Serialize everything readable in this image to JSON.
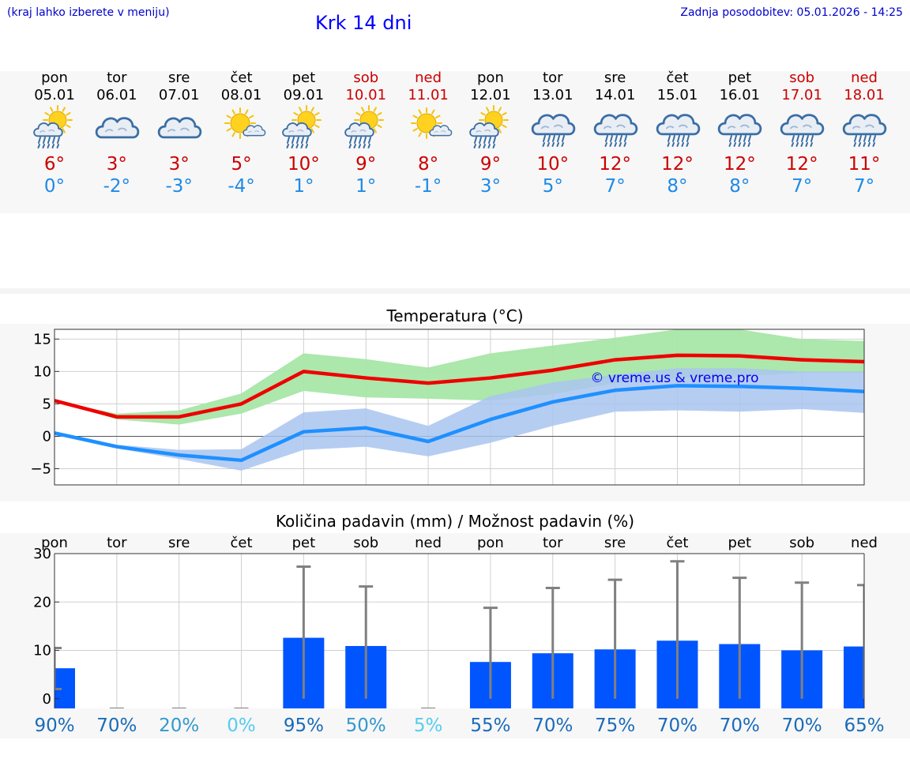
{
  "header": {
    "hint": "(kraj lahko izberete v meniju)",
    "title": "Krk 14 dni",
    "updated": "Zadnja posodobitev: 05.01.2026 - 14:25"
  },
  "days": [
    {
      "day": "pon",
      "date": "05.01",
      "weekend": false,
      "icon": "sun-cloud-rain-icon",
      "high": "6°",
      "low": "0°"
    },
    {
      "day": "tor",
      "date": "06.01",
      "weekend": false,
      "icon": "cloud-icon",
      "high": "3°",
      "low": "-2°"
    },
    {
      "day": "sre",
      "date": "07.01",
      "weekend": false,
      "icon": "cloud-icon",
      "high": "3°",
      "low": "-3°"
    },
    {
      "day": "čet",
      "date": "08.01",
      "weekend": false,
      "icon": "sun-small-cloud-icon",
      "high": "5°",
      "low": "-4°"
    },
    {
      "day": "pet",
      "date": "09.01",
      "weekend": false,
      "icon": "sun-cloud-rain-icon",
      "high": "10°",
      "low": "1°"
    },
    {
      "day": "sob",
      "date": "10.01",
      "weekend": true,
      "icon": "sun-cloud-rain-icon",
      "high": "9°",
      "low": "1°"
    },
    {
      "day": "ned",
      "date": "11.01",
      "weekend": true,
      "icon": "sun-small-cloud-icon",
      "high": "8°",
      "low": "-1°"
    },
    {
      "day": "pon",
      "date": "12.01",
      "weekend": false,
      "icon": "sun-cloud-rain-icon",
      "high": "9°",
      "low": "3°"
    },
    {
      "day": "tor",
      "date": "13.01",
      "weekend": false,
      "icon": "cloud-rain-icon",
      "high": "10°",
      "low": "5°"
    },
    {
      "day": "sre",
      "date": "14.01",
      "weekend": false,
      "icon": "cloud-rain-icon",
      "high": "12°",
      "low": "7°"
    },
    {
      "day": "čet",
      "date": "15.01",
      "weekend": false,
      "icon": "cloud-rain-icon",
      "high": "12°",
      "low": "8°"
    },
    {
      "day": "pet",
      "date": "16.01",
      "weekend": false,
      "icon": "cloud-rain-icon",
      "high": "12°",
      "low": "8°"
    },
    {
      "day": "sob",
      "date": "17.01",
      "weekend": true,
      "icon": "cloud-rain-icon",
      "high": "12°",
      "low": "7°"
    },
    {
      "day": "ned",
      "date": "18.01",
      "weekend": true,
      "icon": "cloud-rain-icon",
      "high": "11°",
      "low": "7°"
    }
  ],
  "colors": {
    "high": "#cc0000",
    "low": "#1e8ae6",
    "max_line": "#ee0000",
    "min_line": "#1e90ff",
    "max_band": "#a8e6a8",
    "min_band": "#a9c4f0",
    "bar": "#0055ff",
    "whisker": "#808080"
  },
  "chart_data": [
    {
      "type": "line",
      "title": "Temperatura (°C)",
      "ylim": [
        -7.5,
        16.5
      ],
      "yticks": [
        -5,
        0,
        5,
        10,
        15
      ],
      "ytick_labels": [
        "−5",
        "0",
        "5",
        "10",
        "15"
      ],
      "watermark": "© vreme.us & vreme.pro",
      "series": [
        {
          "name": "max",
          "values": [
            5.5,
            3,
            3,
            5,
            10,
            9,
            8.2,
            9,
            10.2,
            11.8,
            12.5,
            12.4,
            11.8,
            11.5
          ]
        },
        {
          "name": "min",
          "values": [
            0.5,
            -1.6,
            -2.9,
            -3.7,
            0.7,
            1.3,
            -0.8,
            2.6,
            5.3,
            7.1,
            7.8,
            7.7,
            7.4,
            6.9
          ]
        }
      ],
      "bands": [
        {
          "name": "max_range",
          "upper": [
            5.5,
            3.5,
            4,
            6.6,
            12.8,
            11.9,
            10.6,
            12.8,
            14,
            15.2,
            16.5,
            16.5,
            15,
            14.7
          ],
          "lower": [
            5.5,
            2.6,
            1.8,
            3.5,
            7,
            6,
            5.8,
            5.5,
            6.5,
            8.2,
            9,
            9.2,
            9.8,
            9.8
          ]
        },
        {
          "name": "min_range",
          "upper": [
            0.7,
            -1.3,
            -2.1,
            -2,
            3.7,
            4.3,
            1.6,
            6.2,
            8.3,
            9.5,
            10.5,
            10.5,
            10,
            10
          ],
          "lower": [
            0.2,
            -1.9,
            -3.5,
            -5.3,
            -2.1,
            -1.6,
            -3.1,
            -1,
            1.6,
            3.8,
            4,
            3.8,
            4.2,
            3.6
          ]
        }
      ]
    },
    {
      "type": "bar",
      "title": "Količina padavin (mm) / Možnost padavin (%)",
      "categories": [
        "pon",
        "tor",
        "sre",
        "čet",
        "pet",
        "sob",
        "ned",
        "pon",
        "tor",
        "sre",
        "čet",
        "pet",
        "sob",
        "ned"
      ],
      "ylim": [
        -2,
        30
      ],
      "yticks": [
        0,
        10,
        20,
        30
      ],
      "values": [
        6.3,
        0,
        0,
        0,
        12.6,
        10.9,
        0,
        7.6,
        9.4,
        10.2,
        12,
        11.3,
        10,
        10.8
      ],
      "error_low": [
        2,
        0,
        0,
        0,
        0,
        0,
        0,
        0,
        0,
        0,
        0,
        0,
        0,
        0
      ],
      "error_high": [
        10.5,
        0,
        0,
        0,
        27.3,
        23.2,
        0,
        18.8,
        22.9,
        24.6,
        28.4,
        25,
        24,
        23.5
      ],
      "chance": [
        "90%",
        "70%",
        "20%",
        "0%",
        "95%",
        "50%",
        "5%",
        "55%",
        "70%",
        "75%",
        "70%",
        "70%",
        "70%",
        "65%"
      ],
      "chance_colors": [
        "#1a6bb8",
        "#1a6bb8",
        "#3399cc",
        "#55ccee",
        "#1a6bb8",
        "#3399cc",
        "#55ccee",
        "#1a6bb8",
        "#1a6bb8",
        "#1a6bb8",
        "#1a6bb8",
        "#1a6bb8",
        "#1a6bb8",
        "#1a6bb8"
      ]
    }
  ]
}
